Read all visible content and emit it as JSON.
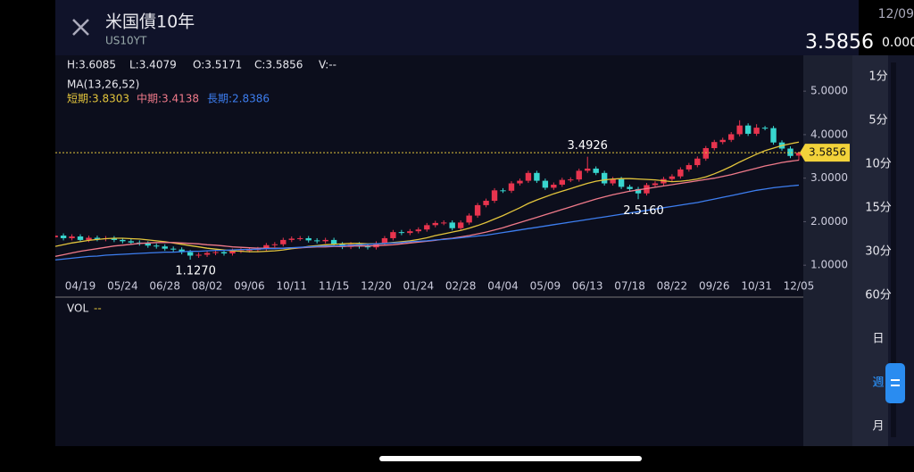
{
  "header": {
    "title": "米国債10年",
    "symbol": "US10YT",
    "date": "12/09",
    "price": "3.5856",
    "change": "0.000"
  },
  "stats": [
    "H:3.6085",
    "L:3.4079",
    "O:3.5171",
    "C:3.5856",
    "V:--"
  ],
  "ma_title": "MA(13,26,52)",
  "volume": {
    "title": "VOL",
    "value": "--"
  },
  "intervals": [
    "1分",
    "5分",
    "10分",
    "15分",
    "30分",
    "60分",
    "日",
    "週",
    "月"
  ],
  "selected_interval": "週",
  "chart_data": {
    "type": "candlestick",
    "categories": [
      null,
      null,
      null,
      "04/19",
      null,
      null,
      null,
      null,
      "05/24",
      null,
      null,
      null,
      null,
      "06/28",
      null,
      null,
      null,
      null,
      "08/02",
      null,
      null,
      null,
      null,
      "09/06",
      null,
      null,
      null,
      null,
      "10/11",
      null,
      null,
      null,
      null,
      "11/15",
      null,
      null,
      null,
      null,
      "12/20",
      null,
      null,
      null,
      null,
      "01/24",
      null,
      null,
      null,
      null,
      "02/28",
      null,
      null,
      null,
      null,
      "04/04",
      null,
      null,
      null,
      null,
      "05/09",
      null,
      null,
      null,
      null,
      "06/13",
      null,
      null,
      null,
      null,
      "07/18",
      null,
      null,
      null,
      null,
      "08/22",
      null,
      null,
      null,
      null,
      "09/26",
      null,
      null,
      null,
      null,
      "10/31",
      null,
      null,
      null,
      null,
      "12/05"
    ],
    "open": [
      1.64,
      1.68,
      1.62,
      1.66,
      1.58,
      1.63,
      1.6,
      1.62,
      1.58,
      1.55,
      1.52,
      1.5,
      1.45,
      1.43,
      1.38,
      1.36,
      1.3,
      1.22,
      1.24,
      1.28,
      1.3,
      1.27,
      1.33,
      1.34,
      1.35,
      1.37,
      1.46,
      1.48,
      1.58,
      1.61,
      1.62,
      1.57,
      1.55,
      1.58,
      1.48,
      1.42,
      1.48,
      1.43,
      1.41,
      1.5,
      1.62,
      1.76,
      1.74,
      1.78,
      1.82,
      1.92,
      1.97,
      1.98,
      1.85,
      1.98,
      2.14,
      2.38,
      2.48,
      2.72,
      2.71,
      2.88,
      2.94,
      3.12,
      2.94,
      2.78,
      2.85,
      2.96,
      2.97,
      3.17,
      3.22,
      3.12,
      2.88,
      2.98,
      2.8,
      2.75,
      2.65,
      2.84,
      2.88,
      2.98,
      3.04,
      3.2,
      3.3,
      3.45,
      3.69,
      3.83,
      3.88,
      4.01,
      4.21,
      4.02,
      4.16,
      4.15,
      3.82,
      3.68,
      3.5171
    ],
    "high": [
      1.73,
      1.73,
      1.71,
      1.71,
      1.68,
      1.68,
      1.67,
      1.67,
      1.63,
      1.6,
      1.57,
      1.55,
      1.5,
      1.48,
      1.43,
      1.41,
      1.35,
      1.29,
      1.33,
      1.35,
      1.35,
      1.38,
      1.39,
      1.4,
      1.42,
      1.51,
      1.53,
      1.63,
      1.66,
      1.67,
      1.67,
      1.62,
      1.63,
      1.63,
      1.53,
      1.53,
      1.53,
      1.48,
      1.55,
      1.67,
      1.81,
      1.81,
      1.83,
      1.87,
      1.97,
      2.02,
      2.03,
      2.03,
      2.03,
      2.19,
      2.43,
      2.53,
      2.77,
      2.77,
      2.93,
      2.99,
      3.17,
      3.17,
      2.99,
      2.9,
      3.01,
      3.02,
      3.22,
      3.4926,
      3.27,
      3.17,
      3.03,
      3.03,
      2.85,
      2.8,
      2.89,
      2.93,
      3.03,
      3.09,
      3.25,
      3.35,
      3.5,
      3.74,
      3.88,
      3.93,
      4.06,
      4.33,
      4.26,
      4.24,
      4.2,
      4.2,
      3.87,
      3.73,
      3.6085
    ],
    "low": [
      1.59,
      1.57,
      1.57,
      1.53,
      1.53,
      1.55,
      1.55,
      1.53,
      1.5,
      1.47,
      1.45,
      1.4,
      1.38,
      1.33,
      1.31,
      1.25,
      1.127,
      1.17,
      1.19,
      1.23,
      1.22,
      1.22,
      1.28,
      1.29,
      1.3,
      1.32,
      1.41,
      1.43,
      1.53,
      1.56,
      1.52,
      1.5,
      1.5,
      1.43,
      1.37,
      1.37,
      1.38,
      1.36,
      1.36,
      1.45,
      1.57,
      1.69,
      1.69,
      1.73,
      1.77,
      1.87,
      1.92,
      1.8,
      1.8,
      1.93,
      2.09,
      2.33,
      2.43,
      2.66,
      2.66,
      2.83,
      2.89,
      2.89,
      2.73,
      2.73,
      2.8,
      2.91,
      2.92,
      3.12,
      3.07,
      2.83,
      2.83,
      2.75,
      2.7,
      2.516,
      2.6,
      2.79,
      2.83,
      2.93,
      2.99,
      3.15,
      3.25,
      3.4,
      3.64,
      3.78,
      3.83,
      3.96,
      3.97,
      3.97,
      4.1,
      3.77,
      3.63,
      3.46,
      3.4079
    ],
    "close": [
      1.68,
      1.62,
      1.66,
      1.58,
      1.63,
      1.6,
      1.62,
      1.58,
      1.55,
      1.52,
      1.5,
      1.45,
      1.43,
      1.38,
      1.36,
      1.3,
      1.22,
      1.24,
      1.28,
      1.3,
      1.27,
      1.33,
      1.34,
      1.35,
      1.37,
      1.46,
      1.48,
      1.58,
      1.61,
      1.62,
      1.57,
      1.55,
      1.58,
      1.48,
      1.42,
      1.48,
      1.43,
      1.41,
      1.5,
      1.62,
      1.76,
      1.74,
      1.78,
      1.82,
      1.92,
      1.97,
      1.98,
      1.85,
      1.98,
      2.14,
      2.38,
      2.48,
      2.72,
      2.71,
      2.88,
      2.94,
      3.12,
      2.94,
      2.78,
      2.85,
      2.96,
      2.97,
      3.17,
      3.22,
      3.12,
      2.88,
      2.98,
      2.8,
      2.75,
      2.65,
      2.84,
      2.88,
      2.98,
      3.04,
      3.2,
      3.3,
      3.45,
      3.69,
      3.83,
      3.88,
      4.01,
      4.21,
      4.02,
      4.16,
      4.15,
      3.82,
      3.68,
      3.51,
      3.5856
    ],
    "up_color": "#e8344e",
    "down_color": "#38d6cf",
    "series": [
      {
        "name": "短期:3.8303",
        "color": "#e3c53c",
        "values": [
          1.43,
          1.47,
          1.51,
          1.54,
          1.57,
          1.59,
          1.61,
          1.62,
          1.62,
          1.61,
          1.6,
          1.58,
          1.56,
          1.54,
          1.51,
          1.48,
          1.45,
          1.42,
          1.39,
          1.37,
          1.35,
          1.33,
          1.32,
          1.31,
          1.31,
          1.32,
          1.33,
          1.35,
          1.38,
          1.4,
          1.43,
          1.45,
          1.47,
          1.48,
          1.49,
          1.5,
          1.5,
          1.49,
          1.49,
          1.5,
          1.52,
          1.54,
          1.56,
          1.59,
          1.63,
          1.68,
          1.72,
          1.76,
          1.8,
          1.85,
          1.91,
          1.98,
          2.06,
          2.14,
          2.23,
          2.32,
          2.42,
          2.5,
          2.57,
          2.64,
          2.7,
          2.76,
          2.82,
          2.88,
          2.93,
          2.96,
          2.98,
          2.99,
          2.99,
          2.98,
          2.97,
          2.96,
          2.94,
          2.92,
          2.93,
          2.95,
          2.98,
          3.03,
          3.1,
          3.18,
          3.27,
          3.37,
          3.46,
          3.55,
          3.63,
          3.69,
          3.75,
          3.79,
          3.8303
        ]
      },
      {
        "name": "中期:3.4138",
        "color": "#f07a8a",
        "values": [
          1.2,
          1.24,
          1.28,
          1.32,
          1.35,
          1.38,
          1.41,
          1.44,
          1.46,
          1.48,
          1.5,
          1.51,
          1.52,
          1.52,
          1.52,
          1.51,
          1.5,
          1.49,
          1.47,
          1.46,
          1.44,
          1.42,
          1.41,
          1.4,
          1.39,
          1.39,
          1.39,
          1.39,
          1.4,
          1.4,
          1.41,
          1.42,
          1.42,
          1.43,
          1.43,
          1.44,
          1.44,
          1.44,
          1.45,
          1.46,
          1.47,
          1.49,
          1.51,
          1.53,
          1.55,
          1.57,
          1.6,
          1.62,
          1.65,
          1.68,
          1.72,
          1.76,
          1.81,
          1.86,
          1.92,
          1.98,
          2.04,
          2.1,
          2.16,
          2.22,
          2.28,
          2.34,
          2.4,
          2.46,
          2.52,
          2.57,
          2.62,
          2.66,
          2.7,
          2.73,
          2.76,
          2.79,
          2.82,
          2.85,
          2.88,
          2.91,
          2.94,
          2.97,
          3.0,
          3.04,
          3.08,
          3.13,
          3.18,
          3.23,
          3.28,
          3.32,
          3.36,
          3.39,
          3.4138
        ]
      },
      {
        "name": "長期:2.8386",
        "color": "#3d7ef0",
        "values": [
          1.12,
          1.14,
          1.16,
          1.18,
          1.2,
          1.21,
          1.23,
          1.24,
          1.25,
          1.26,
          1.27,
          1.28,
          1.29,
          1.3,
          1.3,
          1.31,
          1.32,
          1.32,
          1.33,
          1.34,
          1.34,
          1.35,
          1.36,
          1.36,
          1.37,
          1.38,
          1.38,
          1.39,
          1.4,
          1.41,
          1.42,
          1.43,
          1.44,
          1.44,
          1.45,
          1.46,
          1.47,
          1.48,
          1.49,
          1.5,
          1.51,
          1.52,
          1.54,
          1.55,
          1.56,
          1.58,
          1.59,
          1.61,
          1.63,
          1.65,
          1.67,
          1.69,
          1.72,
          1.75,
          1.78,
          1.81,
          1.84,
          1.87,
          1.9,
          1.93,
          1.96,
          1.99,
          2.02,
          2.05,
          2.08,
          2.11,
          2.14,
          2.17,
          2.2,
          2.23,
          2.26,
          2.29,
          2.32,
          2.35,
          2.38,
          2.41,
          2.44,
          2.48,
          2.52,
          2.56,
          2.6,
          2.64,
          2.68,
          2.72,
          2.75,
          2.78,
          2.8,
          2.82,
          2.8386
        ]
      }
    ],
    "annotations": [
      "3.4926",
      "2.5160",
      "1.1270"
    ],
    "ylim": [
      0.84,
      5.29
    ],
    "yticks": [
      {
        "value": 1,
        "label": "1.0000"
      },
      {
        "value": 2,
        "label": "2.0000"
      },
      {
        "value": 3,
        "label": "3.0000"
      },
      {
        "value": 4,
        "label": "4.0000"
      },
      {
        "value": 5,
        "label": "5.0000"
      }
    ]
  }
}
